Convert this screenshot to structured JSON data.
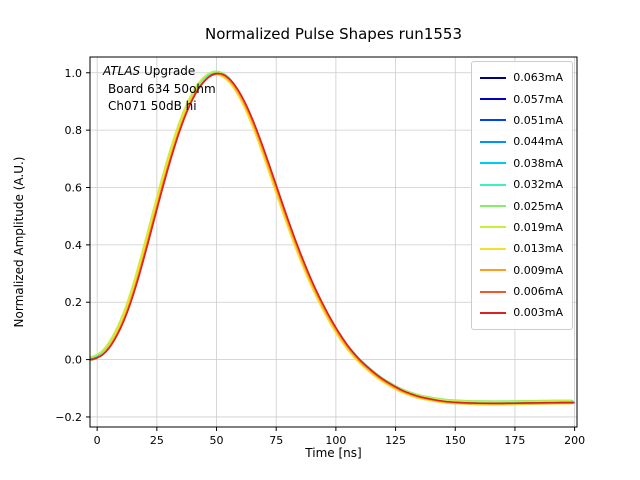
{
  "title": "Normalized Pulse Shapes run1553",
  "annotation": {
    "atlas": "ATLAS",
    "upgrade": " Upgrade",
    "line2": "Board 634 50ohm",
    "line3": "Ch071 50dB hi"
  },
  "chart_data": {
    "type": "line",
    "title": "Normalized Pulse Shapes run1553",
    "xlabel": "Time [ns]",
    "ylabel": "Normalized Amplitude (A.U.)",
    "xlim": [
      -3,
      201
    ],
    "ylim": [
      -0.235,
      1.055
    ],
    "grid": true,
    "legend_position": "upper right",
    "xtick_values": [
      0,
      25,
      50,
      75,
      100,
      125,
      150,
      175,
      200
    ],
    "xtick_labels": [
      "0",
      "25",
      "50",
      "75",
      "100",
      "125",
      "150",
      "175",
      "200"
    ],
    "ytick_values": [
      -0.2,
      0.0,
      0.2,
      0.4,
      0.6,
      0.8,
      1.0
    ],
    "ytick_labels": [
      "−0.2",
      "0.0",
      "0.2",
      "0.4",
      "0.6",
      "0.8",
      "1.0"
    ],
    "x": [
      -8,
      -5,
      -2,
      0,
      2.5,
      5,
      7.5,
      10,
      12.5,
      15,
      17.5,
      20,
      22.5,
      25,
      27.5,
      30,
      32.5,
      35,
      37.5,
      40,
      42.5,
      45,
      47.5,
      50,
      52.5,
      55,
      57.5,
      60,
      62.5,
      65,
      67.5,
      70,
      72.5,
      75,
      77.5,
      80,
      82.5,
      85,
      87.5,
      90,
      92.5,
      95,
      97.5,
      100,
      102.5,
      105,
      107.5,
      110,
      112.5,
      115,
      117.5,
      120,
      122.5,
      125,
      127.5,
      130,
      135,
      140,
      145,
      150,
      155,
      160,
      165,
      170,
      175,
      180,
      185,
      190,
      195,
      200
    ],
    "base_curve": [
      0.0,
      0.0,
      0.001,
      0.006,
      0.018,
      0.04,
      0.072,
      0.112,
      0.162,
      0.222,
      0.29,
      0.365,
      0.443,
      0.522,
      0.6,
      0.674,
      0.743,
      0.806,
      0.861,
      0.907,
      0.944,
      0.971,
      0.989,
      0.997,
      0.995,
      0.982,
      0.959,
      0.927,
      0.887,
      0.84,
      0.787,
      0.73,
      0.67,
      0.609,
      0.548,
      0.488,
      0.43,
      0.375,
      0.323,
      0.274,
      0.229,
      0.187,
      0.148,
      0.112,
      0.079,
      0.049,
      0.023,
      0.0,
      -0.02,
      -0.038,
      -0.055,
      -0.07,
      -0.083,
      -0.095,
      -0.106,
      -0.115,
      -0.129,
      -0.138,
      -0.145,
      -0.149,
      -0.151,
      -0.152,
      -0.1525,
      -0.1525,
      -0.152,
      -0.1515,
      -0.151,
      -0.1505,
      -0.15,
      -0.15
    ],
    "series": [
      {
        "name": "0.063mA",
        "color": "#000080",
        "dt": -0.8,
        "dy": 0.0
      },
      {
        "name": "0.057mA",
        "color": "#0000c8",
        "dt": -0.7,
        "dy": 0.002
      },
      {
        "name": "0.051mA",
        "color": "#0040ff",
        "dt": -0.6,
        "dy": -0.002
      },
      {
        "name": "0.044mA",
        "color": "#0090ff",
        "dt": -0.5,
        "dy": 0.003
      },
      {
        "name": "0.038mA",
        "color": "#00ccee",
        "dt": -0.9,
        "dy": -0.004
      },
      {
        "name": "0.032mA",
        "color": "#3df0c2",
        "dt": -0.5,
        "dy": 0.006
      },
      {
        "name": "0.025mA",
        "color": "#86ee6a",
        "dt": -1.0,
        "dy": 0.008
      },
      {
        "name": "0.019mA",
        "color": "#c8ef3f",
        "dt": -1.3,
        "dy": 0.006
      },
      {
        "name": "0.013mA",
        "color": "#f7df2e",
        "dt": -1.1,
        "dy": -0.004
      },
      {
        "name": "0.009mA",
        "color": "#ff9d23",
        "dt": -0.5,
        "dy": -0.002
      },
      {
        "name": "0.006mA",
        "color": "#f2572a",
        "dt": -0.2,
        "dy": 0.0
      },
      {
        "name": "0.003mA",
        "color": "#de1f1f",
        "dt": 0.0,
        "dy": 0.0
      }
    ]
  }
}
